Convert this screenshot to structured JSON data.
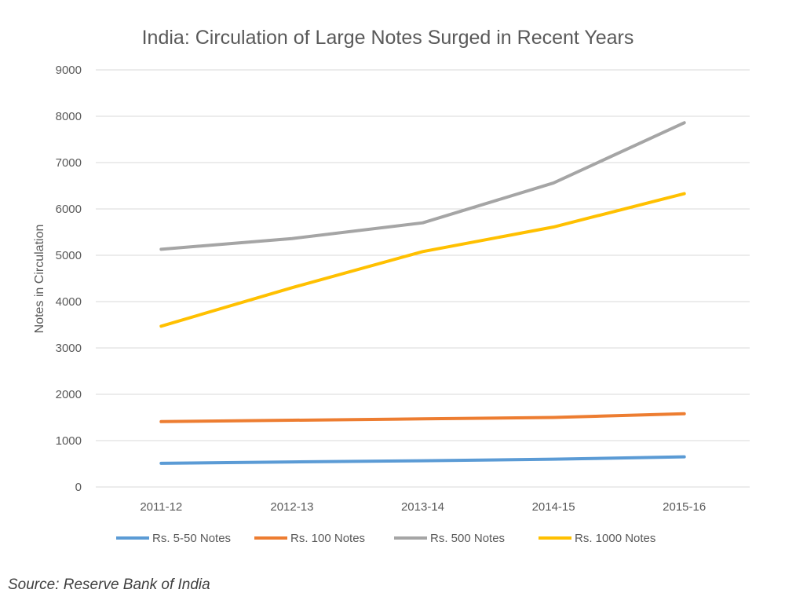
{
  "chart_data": {
    "type": "line",
    "title": "India: Circulation of Large Notes Surged in Recent Years",
    "xlabel": "",
    "ylabel": "Notes in Circulation",
    "categories": [
      "2011-12",
      "2012-13",
      "2013-14",
      "2014-15",
      "2015-16"
    ],
    "ylim": [
      0,
      9000
    ],
    "yticks": [
      0,
      1000,
      2000,
      3000,
      4000,
      5000,
      6000,
      7000,
      8000,
      9000
    ],
    "grid": true,
    "legend_position": "bottom",
    "series": [
      {
        "name": "Rs. 5-50 Notes",
        "color": "#5B9BD5",
        "values": [
          510,
          540,
          565,
          600,
          650
        ]
      },
      {
        "name": "Rs. 100 Notes",
        "color": "#ED7D31",
        "values": [
          1410,
          1440,
          1470,
          1500,
          1580
        ]
      },
      {
        "name": "Rs. 500 Notes",
        "color": "#A5A5A5",
        "values": [
          5130,
          5360,
          5700,
          6560,
          7860
        ]
      },
      {
        "name": "Rs. 1000 Notes",
        "color": "#FFC000",
        "values": [
          3470,
          4300,
          5080,
          5610,
          6330
        ]
      }
    ]
  },
  "source": "Source: Reserve Bank of India"
}
